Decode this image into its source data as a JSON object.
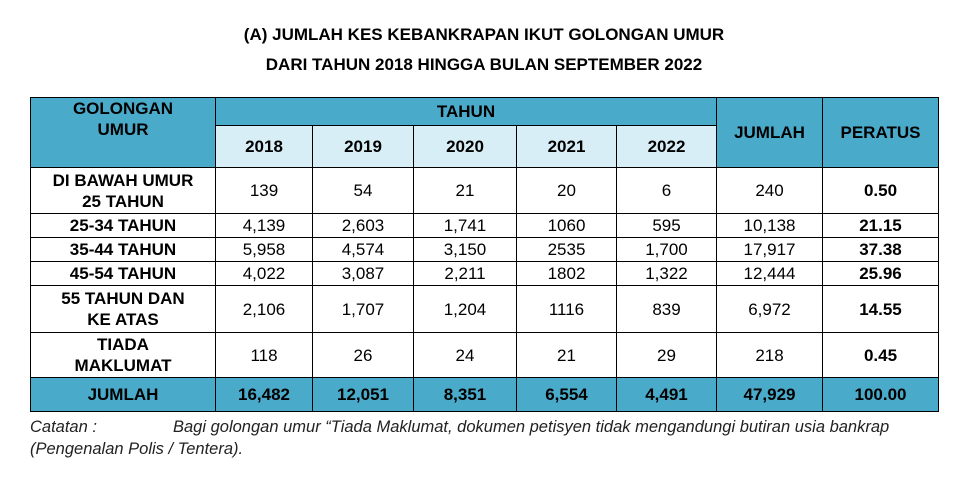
{
  "title": [
    "(A) JUMLAH KES KEBANKRAPAN IKUT GOLONGAN UMUR",
    "DARI TAHUN 2018 HINGGA BULAN SEPTEMBER 2022"
  ],
  "table": {
    "header": {
      "group": "GOLONGAN\nUMUR",
      "tahun": "TAHUN",
      "years": [
        "2018",
        "2019",
        "2020",
        "2021",
        "2022"
      ],
      "jumlah": "JUMLAH",
      "peratus": "PERATUS"
    },
    "rows": [
      [
        "DI BAWAH UMUR\n25 TAHUN",
        "139",
        "54",
        "21",
        "20",
        "6",
        "240",
        "0.50"
      ],
      [
        "25-34 TAHUN",
        "4,139",
        "2,603",
        "1,741",
        "1060",
        "595",
        "10,138",
        "21.15"
      ],
      [
        "35-44 TAHUN",
        "5,958",
        "4,574",
        "3,150",
        "2535",
        "1,700",
        "17,917",
        "37.38"
      ],
      [
        "45-54 TAHUN",
        "4,022",
        "3,087",
        "2,211",
        "1802",
        "1,322",
        "12,444",
        "25.96"
      ],
      [
        "55 TAHUN DAN\nKE ATAS",
        "2,106",
        "1,707",
        "1,204",
        "1116",
        "839",
        "6,972",
        "14.55"
      ],
      [
        "TIADA\nMAKLUMAT",
        "118",
        "26",
        "24",
        "21",
        "29",
        "218",
        "0.45"
      ]
    ],
    "total": [
      "JUMLAH",
      "16,482",
      "12,051",
      "8,351",
      "6,554",
      "4,491",
      "47,929",
      "100.00"
    ]
  },
  "note": {
    "label": "Catatan :",
    "text": "Bagi golongan umur “Tiada Maklumat, dokumen petisyen tidak mengandungi butiran usia bankrap (Pengenalan Polis / Tentera)."
  }
}
